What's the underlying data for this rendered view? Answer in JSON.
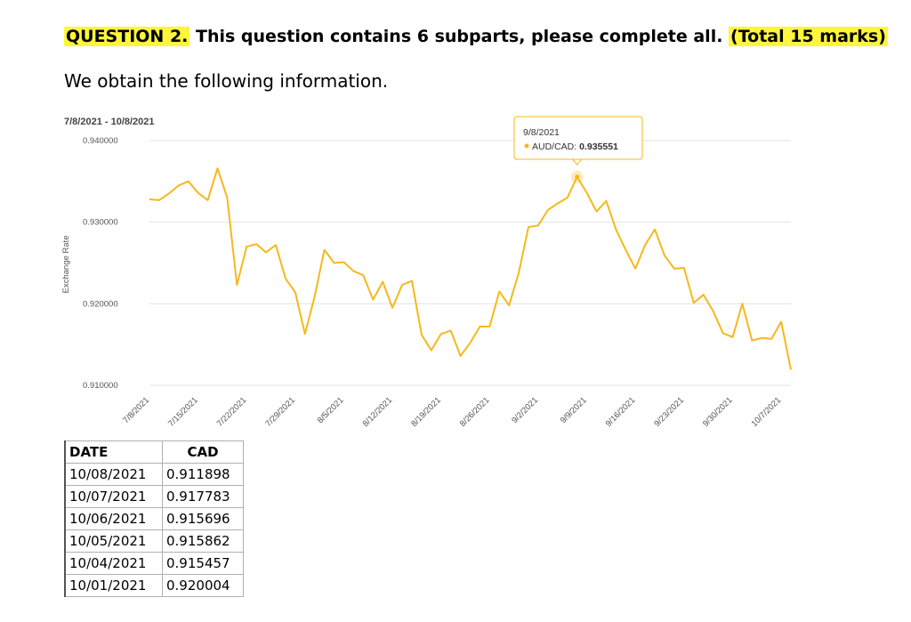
{
  "question": {
    "label": "QUESTION 2.",
    "text": " This question contains 6 subparts, please complete all. ",
    "marks": "(Total 15 marks)"
  },
  "intro": "We obtain the following information.",
  "chart_data": {
    "type": "line",
    "date_range": "7/8/2021 - 10/8/2021",
    "ylabel": "Exchange Rate",
    "ylim": [
      0.91,
      0.94
    ],
    "y_ticks": [
      "0.940000",
      "0.930000",
      "0.920000",
      "0.910000"
    ],
    "x_ticks": [
      "7/8/2021",
      "7/15/2021",
      "7/22/2021",
      "7/29/2021",
      "8/5/2021",
      "8/12/2021",
      "8/19/2021",
      "8/26/2021",
      "9/2/2021",
      "9/9/2021",
      "9/16/2021",
      "9/23/2021",
      "9/30/2021",
      "10/7/2021"
    ],
    "line_color": "#f6b81c",
    "series": [
      {
        "name": "AUD/CAD",
        "values": [
          0.9328,
          0.9327,
          0.9335,
          0.9345,
          0.935,
          0.9336,
          0.9327,
          0.9366,
          0.933,
          0.9223,
          0.927,
          0.9273,
          0.9263,
          0.9272,
          0.9231,
          0.9214,
          0.9163,
          0.9209,
          0.9266,
          0.925,
          0.9251,
          0.924,
          0.9235,
          0.9205,
          0.9227,
          0.9195,
          0.9223,
          0.9228,
          0.9162,
          0.9143,
          0.9163,
          0.9167,
          0.9136,
          0.9152,
          0.9172,
          0.9172,
          0.9215,
          0.9198,
          0.9238,
          0.9294,
          0.9296,
          0.9315,
          0.9323,
          0.933,
          0.935551,
          0.9336,
          0.9313,
          0.9326,
          0.9291,
          0.9266,
          0.9243,
          0.9272,
          0.9291,
          0.9259,
          0.9243,
          0.9244,
          0.9201,
          0.9211,
          0.9191,
          0.9164,
          0.9159,
          0.92,
          0.9155,
          0.9158,
          0.9157,
          0.9178,
          0.9119
        ]
      }
    ],
    "tooltip": {
      "date": "9/8/2021",
      "series": "AUD/CAD: ",
      "value": "0.935551",
      "index": 44
    }
  },
  "table": {
    "headers": [
      "DATE",
      "CAD"
    ],
    "rows": [
      [
        "10/08/2021",
        "0.911898"
      ],
      [
        "10/07/2021",
        "0.917783"
      ],
      [
        "10/06/2021",
        "0.915696"
      ],
      [
        "10/05/2021",
        "0.915862"
      ],
      [
        "10/04/2021",
        "0.915457"
      ],
      [
        "10/01/2021",
        "0.920004"
      ]
    ]
  }
}
